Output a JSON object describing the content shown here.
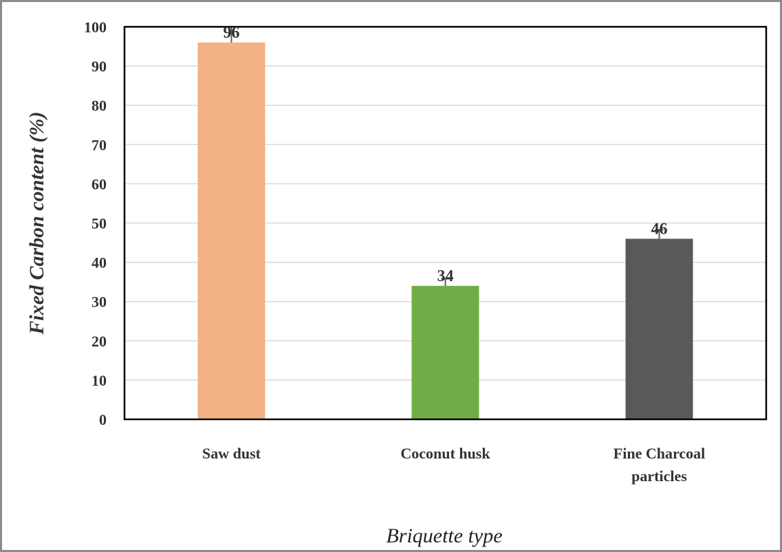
{
  "chart_data": {
    "type": "bar",
    "title": "",
    "xlabel": "Briquette type",
    "ylabel": "Fixed Carbon content (%)",
    "ylim": [
      0,
      100
    ],
    "yticks": [
      0,
      10,
      20,
      30,
      40,
      50,
      60,
      70,
      80,
      90,
      100
    ],
    "grid": true,
    "categories": [
      {
        "lines": [
          "Saw dust"
        ]
      },
      {
        "lines": [
          "Coconut husk"
        ]
      },
      {
        "lines": [
          "Fine Charcoal",
          "particles"
        ]
      }
    ],
    "values": [
      96,
      34,
      46
    ],
    "data_labels": [
      "96",
      "34",
      "46"
    ],
    "error_bars": [
      {
        "low": 91.2,
        "high": 100
      },
      {
        "low": 32.5,
        "high": 35.8
      },
      {
        "low": 45,
        "high": 48.3
      }
    ],
    "colors": [
      "#F4B183",
      "#70AD47",
      "#595959"
    ]
  }
}
